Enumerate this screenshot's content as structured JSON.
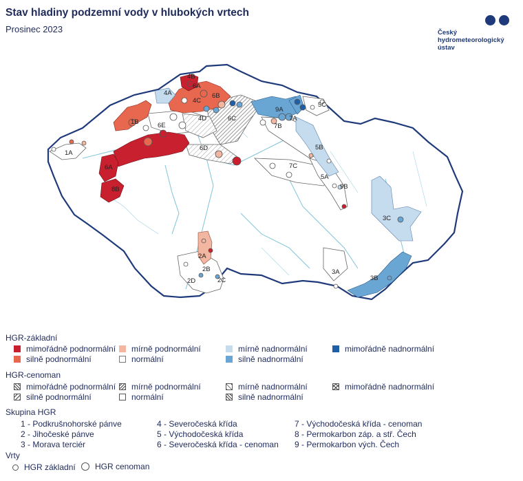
{
  "header": {
    "title": "Stav hladiny podzemní vody v hlubokých vrtech",
    "subtitle": "Prosinec 2023"
  },
  "logo": {
    "lines": [
      "Český",
      "hydrometeorologický",
      "ústav"
    ]
  },
  "colors": {
    "mimoradne_podnormalni": "#c8202f",
    "silne_podnormalni": "#e8684f",
    "mirne_podnormalni": "#f3b6a0",
    "normalni": "#ffffff",
    "mirne_nadnormalni": "#c5dcef",
    "silne_nadnormalni": "#6aa6d4",
    "mimoradne_nadnormalni": "#1f5fa8",
    "border": "#1e3a7a",
    "rivers": "#7fc4d8"
  },
  "map": {
    "region_labels": [
      "1A",
      "1B",
      "2A",
      "2B",
      "2C",
      "2D",
      "3A",
      "3B",
      "3C",
      "4A",
      "4B",
      "4C",
      "4D",
      "5A",
      "5B",
      "5C",
      "6A",
      "6A",
      "6B",
      "6C",
      "6D",
      "6E",
      "7A",
      "7B",
      "7C",
      "8B",
      "9A",
      "9B"
    ]
  },
  "legend": {
    "zakladni": {
      "title": "HGR-základní",
      "items": [
        "mimořádně podnormální",
        "mírně podnormální",
        "mírně nadnormální",
        "mimořádně nadnormální",
        "silně podnormální",
        "normální",
        "silně nadnormální"
      ]
    },
    "cenoman": {
      "title": "HGR-cenoman",
      "items": [
        "mimořádně podnormální",
        "mírně podnormální",
        "mírně nadnormální",
        "mimořádně nadnormální",
        "silně podnormální",
        "normální",
        "silně nadnormální"
      ]
    },
    "skupina": {
      "title": "Skupina HGR",
      "items": [
        "1 - Podkrušnohorské pánve",
        "2 - Jihočeské pánve",
        "3 - Morava terciér",
        "4 - Severočeská křída",
        "5 - Východočeská křída",
        "6 - Severočeská křída - cenoman",
        "7 - Východočeská křída - cenoman",
        "8 - Permokarbon záp. a stř. Čech",
        "9 - Permokarbon vých. Čech"
      ]
    },
    "vrty": {
      "title": "Vrty",
      "items": [
        "HGR základní",
        "HGR cenoman"
      ]
    }
  }
}
